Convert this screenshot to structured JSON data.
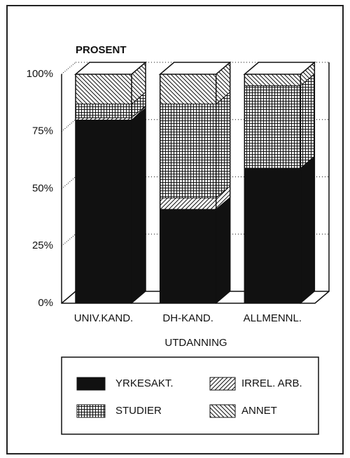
{
  "chart_data": {
    "type": "bar",
    "stacked": true,
    "y_label": "PROSENT",
    "x_label": "UTDANNING",
    "categories": [
      "UNIV.KAND.",
      "DH-KAND.",
      "ALLMENNL."
    ],
    "series": [
      {
        "name": "YRKESAKT.",
        "color": "#111111",
        "pattern": "solid",
        "values": [
          80,
          41,
          59
        ]
      },
      {
        "name": "IRREL. ARB.",
        "color": "#111111",
        "pattern": "diagonal",
        "values": [
          1,
          5,
          0
        ]
      },
      {
        "name": "STUDIER",
        "color": "#111111",
        "pattern": "grid",
        "values": [
          6,
          41,
          36
        ]
      },
      {
        "name": "ANNET",
        "color": "#111111",
        "pattern": "backdiagonal",
        "values": [
          13,
          13,
          5
        ]
      }
    ],
    "ylim": [
      0,
      100
    ],
    "yticks": [
      {
        "value": 0,
        "label": "0%"
      },
      {
        "value": 25,
        "label": "25%"
      },
      {
        "value": 50,
        "label": "50%"
      },
      {
        "value": 75,
        "label": "75%"
      },
      {
        "value": 100,
        "label": "100%"
      }
    ],
    "grid": true
  }
}
